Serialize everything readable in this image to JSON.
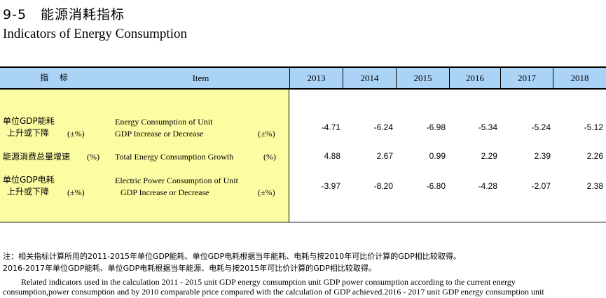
{
  "title_cn": "9-5　能源消耗指标",
  "title_en": "Indicators of Energy Consumption",
  "header": {
    "indicator_cn": "指 标",
    "item_en": "Item",
    "years": [
      "2013",
      "2014",
      "2015",
      "2016",
      "2017",
      "2018"
    ]
  },
  "rows": [
    {
      "cn_line1": "单位GDP能耗",
      "cn_line2": "上升或下降",
      "cn_unit": "(±%)",
      "en_line1": "Energy Consumption of Unit",
      "en_line2": "GDP Increase or Decrease",
      "en_unit": "(±%)",
      "values": [
        "-4.71",
        "-6.24",
        "-6.98",
        "-5.34",
        "-5.24",
        "-5.12"
      ]
    },
    {
      "cn_line1": "能源消费总量增速",
      "cn_unit": "(%)",
      "en_line1": "Total Energy Consumption Growth",
      "en_unit": "(%)",
      "values": [
        "4.88",
        "2.67",
        "0.99",
        "2.29",
        "2.39",
        "2.26"
      ]
    },
    {
      "cn_line1": "单位GDP电耗",
      "cn_line2": "上升或下降",
      "cn_unit": "(±%)",
      "en_line1": "Electric Power Consumption of Unit",
      "en_line2": "GDP Increase or Decrease",
      "en_unit": "(±%)",
      "values": [
        "-3.97",
        "-8.20",
        "-6.80",
        "-4.28",
        "-2.07",
        "2.38"
      ]
    }
  ],
  "notes": {
    "cn_line1": "注：相关指标计算所用的2011-2015年单位GDP能耗、单位GDP电耗根据当年能耗、电耗与按2010年可比价计算的GDP相比较取得。",
    "cn_line2": "2016-2017年单位GDP能耗、单位GDP电耗根据当年能源、电耗与按2015年可比价计算的GDP相比较取得。",
    "en_line1": "Related indicators used in the calculation 2011 - 2015 unit GDP energy consumption  unit GDP power consumption according to the current energy",
    "en_line2": "consumption,power consumption and by 2010 comparable price  compared with the calculation of GDP achieved.2016 - 2017 unit GDP energy consumption  unit"
  }
}
